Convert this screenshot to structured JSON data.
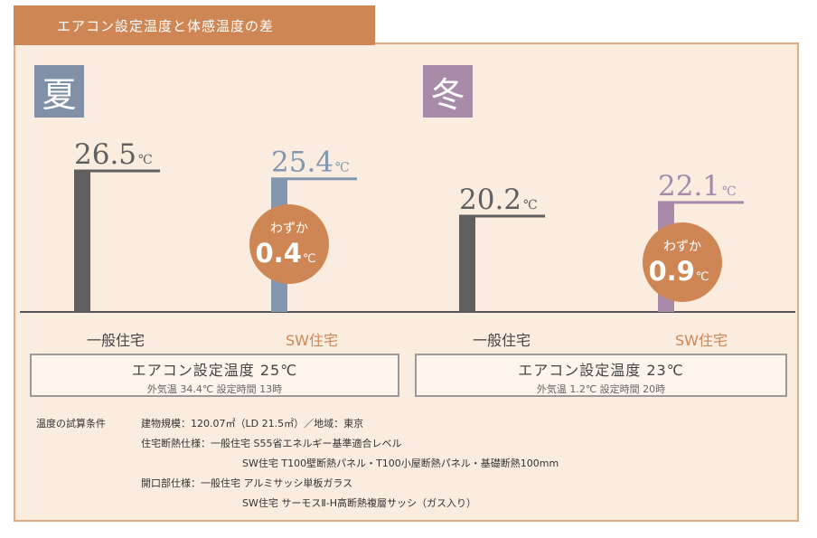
{
  "header": {
    "title": "エアコン設定温度と体感温度の差"
  },
  "seasons": {
    "summer": "夏",
    "winter": "冬"
  },
  "unit": "℃",
  "chart_data": {
    "type": "bar",
    "title": "エアコン設定温度と体感温度の差",
    "groups": [
      {
        "season": "夏",
        "bars": [
          {
            "label": "一般住宅",
            "value": 26.5,
            "value_text": "26.5",
            "color": "#5f5f5f",
            "label_color": "#444444"
          },
          {
            "label": "SW住宅",
            "value": 25.4,
            "value_text": "25.4",
            "color": "#8396b0",
            "label_color": "#cf8655"
          }
        ],
        "difference": {
          "prefix": "わずか",
          "value": "0.4",
          "unit": "℃"
        }
      },
      {
        "season": "冬",
        "bars": [
          {
            "label": "一般住宅",
            "value": 20.2,
            "value_text": "20.2",
            "color": "#5f5f5f",
            "label_color": "#444444"
          },
          {
            "label": "SW住宅",
            "value": 22.1,
            "value_text": "22.1",
            "color": "#a889aa",
            "label_color": "#cf8655"
          }
        ],
        "difference": {
          "prefix": "わずか",
          "value": "0.9",
          "unit": "℃"
        }
      }
    ],
    "colors": {
      "badge": "#cf8655",
      "axis": "#555555"
    }
  },
  "conditions": {
    "summer": {
      "main": "エアコン設定温度 25℃",
      "sub": "外気温 34.4℃  設定時間 13時"
    },
    "winter": {
      "main": "エアコン設定温度 23℃",
      "sub": "外気温 1.2℃  設定時間 20時"
    }
  },
  "notes": {
    "heading": "温度の試算条件",
    "line1": "建物規模：120.07㎡（LD 21.5㎡）／地域：東京",
    "line2": "住宅断熱仕様：一般住宅 S55省エネルギー基準適合レベル",
    "line3": "SW住宅 T100壁断熱パネル・T100小屋断熱パネル・基礎断熱100mm",
    "line4": "開口部仕様：一般住宅 アルミサッシ単板ガラス",
    "line5": "SW住宅 サーモスⅡ-H高断熱複層サッシ（ガス入り）"
  }
}
